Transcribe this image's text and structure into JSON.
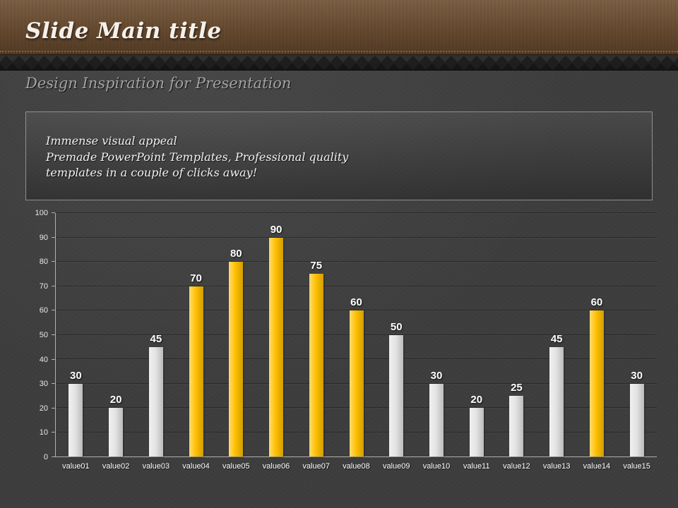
{
  "slide": {
    "title": "Slide Main title",
    "subtitle": "Design Inspiration for Presentation",
    "textbox": {
      "lines": [
        "Immense visual appeal",
        "Premade PowerPoint Templates, Professional quality",
        "templates in a couple of clicks away!"
      ]
    }
  },
  "colors": {
    "header_brown_top": "#7b6044",
    "header_brown_bottom": "#523a24",
    "background": "#3d3d3d",
    "bar_yellow": "#FFC000",
    "bar_white": "#E4E4E4",
    "axis_line": "#B0B0B0",
    "axis_text": "#E8E8E8"
  },
  "chart_data": {
    "type": "bar",
    "title": "",
    "xlabel": "",
    "ylabel": "",
    "categories": [
      "value01",
      "value02",
      "value03",
      "value04",
      "value05",
      "value06",
      "value07",
      "value08",
      "value09",
      "value10",
      "value11",
      "value12",
      "value13",
      "value14",
      "value15"
    ],
    "values": [
      30,
      20,
      45,
      70,
      80,
      90,
      75,
      60,
      50,
      30,
      20,
      25,
      45,
      60,
      30
    ],
    "bar_colors": [
      "white",
      "white",
      "white",
      "yellow",
      "yellow",
      "yellow",
      "yellow",
      "yellow",
      "white",
      "white",
      "white",
      "white",
      "white",
      "yellow",
      "white"
    ],
    "ylim": [
      0,
      100
    ],
    "yticks": [
      0,
      10,
      20,
      30,
      40,
      50,
      60,
      70,
      80,
      90,
      100
    ],
    "grid": true,
    "legend": "none",
    "data_labels": true
  }
}
